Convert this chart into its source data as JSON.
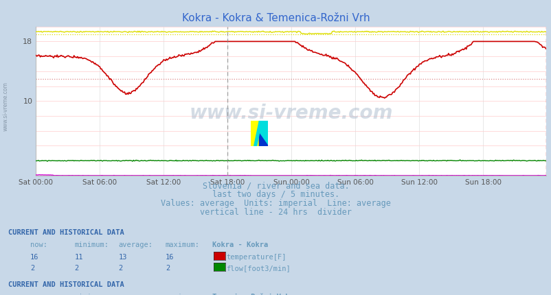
{
  "title": "Kokra - Kokra & Temenica-Rožni Vrh",
  "title_color": "#3366cc",
  "bg_color": "#c8d8e8",
  "plot_bg_color": "#ffffff",
  "grid_color": "#dddddd",
  "grid_color_h": "#ffcccc",
  "xlabel_ticks": [
    "Sat 00:00",
    "Sat 06:00",
    "Sat 12:00",
    "Sat 18:00",
    "Sun 00:00",
    "Sun 06:00",
    "Sun 12:00",
    "Sun 18:00"
  ],
  "ylim": [
    0,
    20
  ],
  "ytick_vals": [
    10,
    18
  ],
  "n_points": 576,
  "kokra_temp_min": 11,
  "kokra_temp_max": 16,
  "kokra_temp_avg": 13,
  "kokra_temp_now": 16,
  "kokra_flow_min": 2,
  "kokra_flow_max": 2,
  "kokra_flow_avg": 2,
  "kokra_flow_now": 2,
  "temenica_temp_min": 19,
  "temenica_temp_max": 20,
  "temenica_temp_avg": 19,
  "temenica_temp_now": 19,
  "temenica_flow_min": 0,
  "temenica_flow_max": 0,
  "temenica_flow_avg": 0,
  "temenica_flow_now": 0,
  "kokra_temp_color": "#cc0000",
  "kokra_flow_color": "#008800",
  "temenica_temp_color": "#dddd00",
  "temenica_flow_color": "#cc00cc",
  "avg_kokra_color": "#dd8888",
  "avg_temenica_color": "#dddd00",
  "divider_color": "#888888",
  "right_border_color": "#cc0000",
  "watermark": "www.si-vreme.com",
  "watermark_color": "#aabbcc",
  "subtitle_lines": [
    "Slovenia / river and sea data.",
    "last two days / 5 minutes.",
    "Values: average  Units: imperial  Line: average",
    "vertical line - 24 hrs  divider"
  ],
  "subtitle_color": "#6699bb",
  "subtitle_fontsize": 8.5,
  "table1_header": "CURRENT AND HISTORICAL DATA",
  "table1_station": "Kokra - Kokra",
  "table2_station": "Temenica-Rožni Vrh",
  "table_color": "#6699bb",
  "table_value_color": "#3366aa",
  "table_header_color": "#3366aa"
}
